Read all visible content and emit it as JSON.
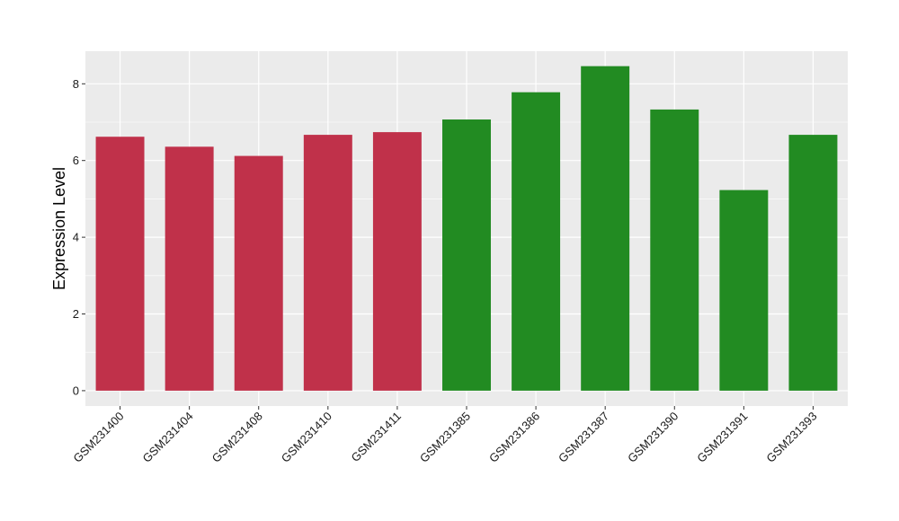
{
  "chart_data": {
    "type": "bar",
    "title": "",
    "xlabel": "",
    "ylabel": "Expression Level",
    "ylim": [
      -0.4,
      8.85
    ],
    "yticks": [
      0,
      2,
      4,
      6,
      8
    ],
    "grid": true,
    "categories": [
      "GSM231400",
      "GSM231404",
      "GSM231408",
      "GSM231410",
      "GSM231411",
      "GSM231385",
      "GSM231386",
      "GSM231387",
      "GSM231390",
      "GSM231391",
      "GSM231393"
    ],
    "values": [
      6.62,
      6.36,
      6.12,
      6.67,
      6.74,
      7.07,
      7.78,
      8.46,
      7.33,
      5.23,
      6.67
    ],
    "bar_colors": [
      "#c0314a",
      "#c0314a",
      "#c0314a",
      "#c0314a",
      "#c0314a",
      "#228b22",
      "#228b22",
      "#228b22",
      "#228b22",
      "#228b22",
      "#228b22"
    ],
    "panel_background": "#ebebeb",
    "grid_color": "#ffffff"
  }
}
